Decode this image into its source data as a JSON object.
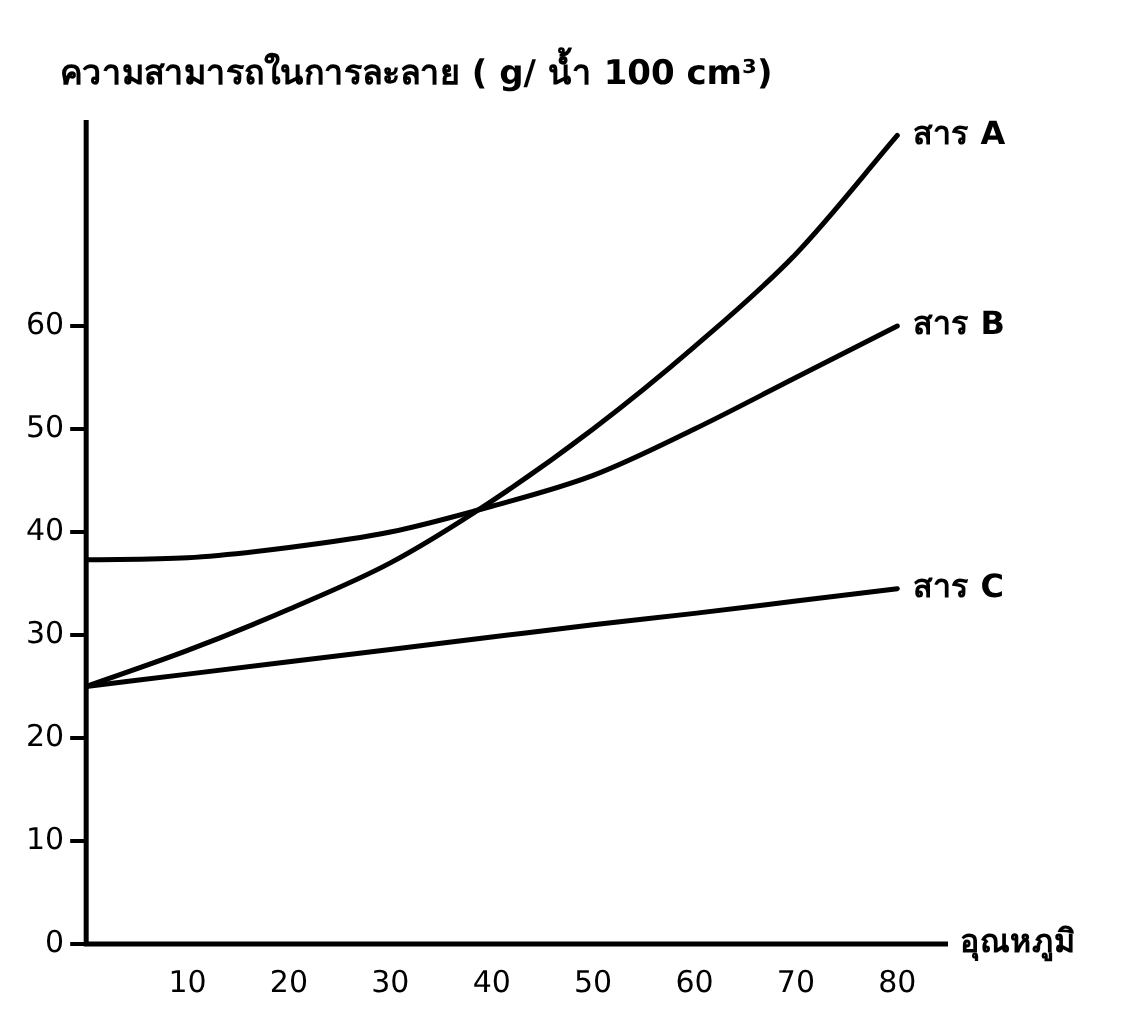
{
  "chart_data": {
    "type": "line",
    "ylabel": "ความสามารถในการละลาย ( g/ น้ำ 100 cm³)",
    "xlabel": "อุณหภูมิ",
    "x": [
      0,
      10,
      20,
      30,
      40,
      50,
      60,
      70,
      80
    ],
    "series": [
      {
        "name": "สาร A",
        "color": "#000000",
        "values": [
          25,
          28.5,
          32.5,
          37,
          43,
          50,
          58,
          67,
          78.5
        ]
      },
      {
        "name": "สาร B",
        "color": "#000000",
        "values": [
          37.3,
          37.5,
          38.5,
          40,
          42.5,
          45.5,
          50,
          55,
          60
        ]
      },
      {
        "name": "สาร C",
        "color": "#000000",
        "values": [
          25,
          26.2,
          27.4,
          28.6,
          29.8,
          31,
          32.1,
          33.3,
          34.5
        ]
      }
    ],
    "xlim": [
      0,
      85
    ],
    "ylim": [
      0,
      80
    ],
    "xticks": [
      10,
      20,
      30,
      40,
      50,
      60,
      70,
      80
    ],
    "yticks": [
      0,
      10,
      20,
      30,
      40,
      50,
      60
    ],
    "grid": false,
    "legend": false,
    "marker": "none",
    "line_style": "solid"
  }
}
